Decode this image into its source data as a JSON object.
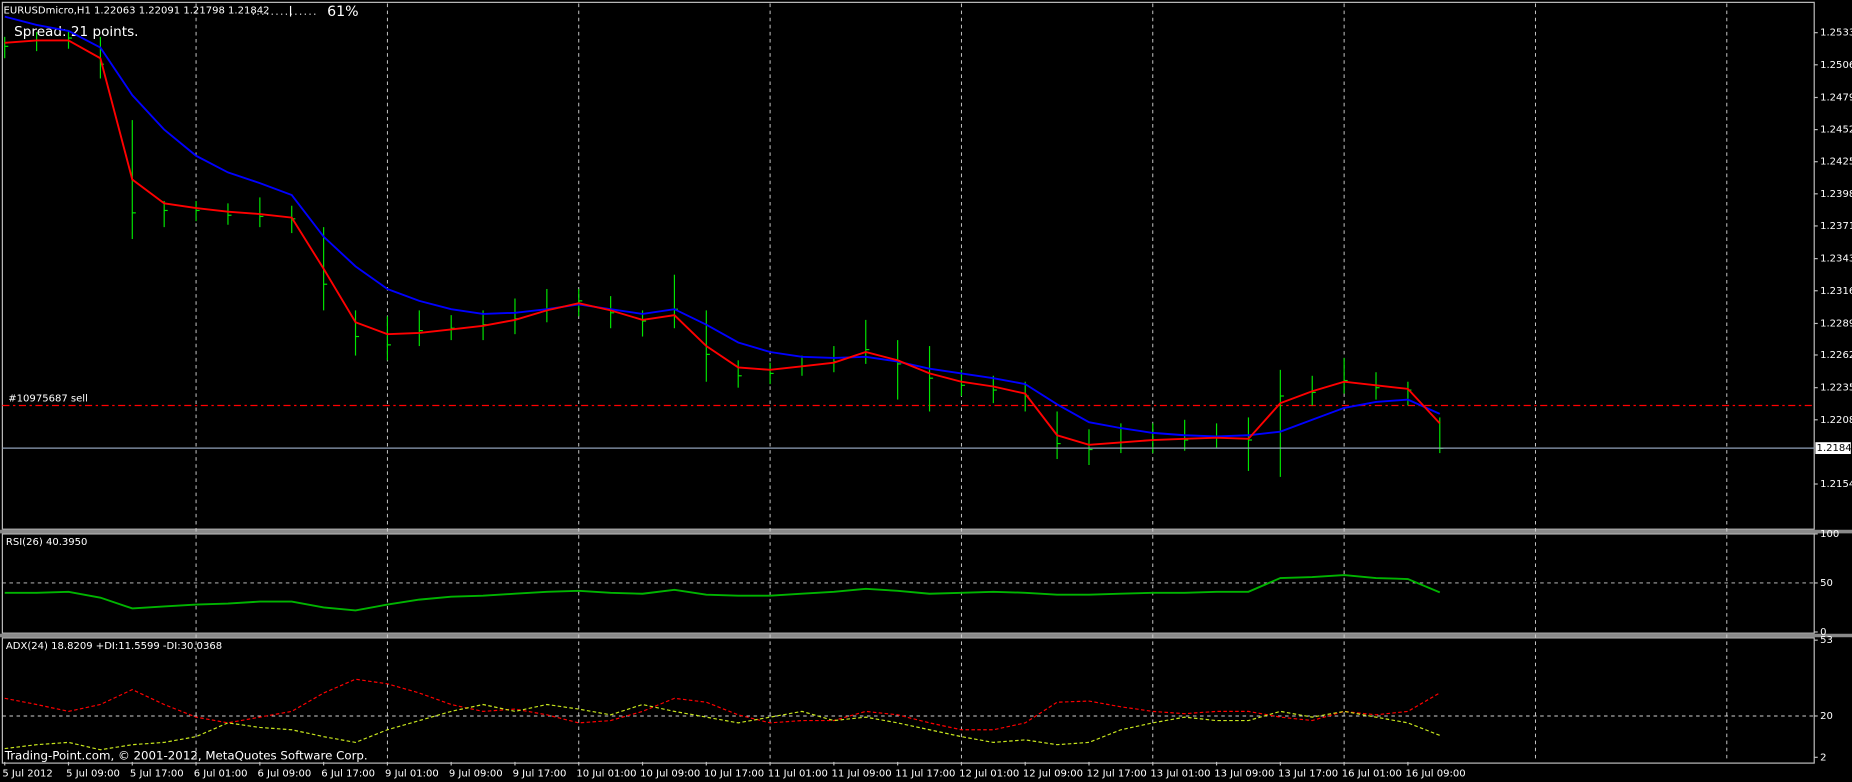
{
  "chart_data": [
    {
      "type": "hlc",
      "title": "EURUSDmicro,H1 1.22063 1.22091 1.21798 1.21842",
      "indicator": "61%",
      "spread": "Spread: 21 points.",
      "footer": "Trading-Point.com, © 2001-2012, MetaQuotes Software Corp.",
      "categories": [
        "5 Jul 2012",
        null,
        "5 Jul 09:00",
        null,
        "5 Jul 17:00",
        null,
        "6 Jul 01:00",
        null,
        "6 Jul 09:00",
        null,
        "6 Jul 17:00",
        null,
        "9 Jul 01:00",
        null,
        "9 Jul 09:00",
        null,
        "9 Jul 17:00",
        null,
        "10 Jul 01:00",
        null,
        "10 Jul 09:00",
        null,
        "10 Jul 17:00",
        null,
        "11 Jul 01:00",
        null,
        "11 Jul 09:00",
        null,
        "11 Jul 17:00",
        null,
        "12 Jul 01:00",
        null,
        "12 Jul 09:00",
        null,
        "12 Jul 17:00",
        null,
        "13 Jul 01:00",
        null,
        "13 Jul 09:00",
        null,
        "13 Jul 17:00",
        null,
        "16 Jul 01:00",
        null,
        "16 Jul 09:00",
        null
      ],
      "high": [
        1.253,
        1.2534,
        1.2535,
        1.253,
        1.246,
        1.2392,
        1.2392,
        1.239,
        1.2395,
        1.2388,
        1.237,
        1.23,
        1.2295,
        1.23,
        1.2296,
        1.23,
        1.231,
        1.2318,
        1.2318,
        1.2312,
        1.23,
        1.233,
        1.23,
        1.2258,
        1.2256,
        1.2262,
        1.227,
        1.2292,
        1.2275,
        1.227,
        1.225,
        1.2245,
        1.224,
        1.2215,
        1.22,
        1.2205,
        1.2205,
        1.2208,
        1.2205,
        1.221,
        1.225,
        1.2245,
        1.226,
        1.2248,
        1.224,
        1.221
      ],
      "low": [
        1.2512,
        1.2518,
        1.252,
        1.2495,
        1.236,
        1.237,
        1.2375,
        1.2372,
        1.237,
        1.2365,
        1.23,
        1.2262,
        1.2258,
        1.227,
        1.2275,
        1.2275,
        1.228,
        1.229,
        1.2295,
        1.2285,
        1.2278,
        1.2285,
        1.224,
        1.2235,
        1.2238,
        1.2245,
        1.2248,
        1.2255,
        1.2225,
        1.2215,
        1.2228,
        1.2222,
        1.2215,
        1.2175,
        1.217,
        1.218,
        1.218,
        1.2182,
        1.2184,
        1.2165,
        1.216,
        1.222,
        1.223,
        1.2225,
        1.222,
        1.218
      ],
      "close": [
        1.2522,
        1.2527,
        1.2529,
        1.2507,
        1.2382,
        1.2384,
        1.2384,
        1.238,
        1.2379,
        1.2377,
        1.2322,
        1.2278,
        1.2271,
        1.2283,
        1.2285,
        1.2288,
        1.2293,
        1.2301,
        1.2308,
        1.2298,
        1.2291,
        1.2301,
        1.2263,
        1.2245,
        1.2247,
        1.2253,
        1.2257,
        1.2267,
        1.2255,
        1.2243,
        1.2237,
        1.2233,
        1.2228,
        1.2188,
        1.2183,
        1.2189,
        1.2191,
        1.2191,
        1.2193,
        1.2191,
        1.2228,
        1.2231,
        1.2241,
        1.2235,
        1.2233,
        1.2184
      ],
      "color": "#00e600",
      "ma_lines": [
        {
          "color": "#0000ff",
          "values": [
            1.2547,
            1.254,
            1.2535,
            1.2521,
            1.2481,
            1.2452,
            1.243,
            1.2416,
            1.2407,
            1.2397,
            1.2362,
            1.2337,
            1.2318,
            1.2308,
            1.2301,
            1.2297,
            1.2298,
            1.2301,
            1.2305,
            1.2301,
            1.2297,
            1.2301,
            1.2288,
            1.2273,
            1.2265,
            1.2261,
            1.226,
            1.2261,
            1.2257,
            1.2251,
            1.2247,
            1.2243,
            1.2238,
            1.2221,
            1.2206,
            1.2201,
            1.2197,
            1.2195,
            1.2194,
            1.2195,
            1.2198,
            1.2208,
            1.2218,
            1.2223,
            1.2225,
            1.2213
          ]
        },
        {
          "color": "#ff0000",
          "values": [
            1.2525,
            1.2527,
            1.2527,
            1.2512,
            1.241,
            1.239,
            1.2386,
            1.2383,
            1.2381,
            1.2378,
            1.2335,
            1.229,
            1.228,
            1.2281,
            1.2284,
            1.2287,
            1.2292,
            1.23,
            1.2306,
            1.23,
            1.2292,
            1.2296,
            1.227,
            1.2252,
            1.225,
            1.2253,
            1.2256,
            1.2265,
            1.2258,
            1.2247,
            1.224,
            1.2236,
            1.223,
            1.2195,
            1.2187,
            1.2189,
            1.2191,
            1.2192,
            1.2193,
            1.2192,
            1.2222,
            1.2232,
            1.224,
            1.2237,
            1.2234,
            1.2205
          ]
        }
      ],
      "order_line": {
        "label": "#10975687 sell",
        "value": 1.222,
        "color": "#ff0000"
      },
      "current_price": 1.21842,
      "ylim": [
        1.2116,
        1.2558
      ],
      "yticks": [
        1.25335,
        1.25065,
        {
          "value": 1.2479,
          "label": "1.24790"
        },
        {
          "value": 1.2452,
          "label": "1.24520"
        },
        {
          "value": 1.2425,
          "label": "1.24250"
        },
        {
          "value": 1.2398,
          "label": "1.23980"
        },
        {
          "value": 1.2371,
          "label": "1.23710"
        },
        1.23435,
        1.23165,
        {
          "value": 1.2289,
          "label": "1.22890"
        },
        1.22625,
        {
          "value": 1.2235,
          "label": "1.22350"
        },
        {
          "value": 1.2208,
          "label": "1.22080"
        },
        {
          "value": 1.2154,
          "label": "1.21540"
        }
      ]
    },
    {
      "type": "line",
      "title": "RSI(26) 40.3950",
      "color": "#00b400",
      "values": [
        40,
        40,
        41,
        35,
        24,
        26,
        28,
        29,
        31,
        31,
        25,
        22,
        28,
        33,
        36,
        37,
        39,
        41,
        42,
        40,
        39,
        43,
        38,
        37,
        37,
        39,
        41,
        44,
        42,
        39,
        40,
        41,
        40,
        38,
        38,
        39,
        40,
        40,
        41,
        41,
        55,
        56,
        58,
        55,
        54,
        40.395
      ],
      "ylim": [
        0,
        100
      ],
      "yticks": [
        0,
        50,
        100
      ]
    },
    {
      "type": "line",
      "title": "ADX(24) 18.8209 +DI:11.5599 -DI:30.0368",
      "dashed": true,
      "series": [
        {
          "color": "#ff0000",
          "values": [
            27.7,
            25,
            22,
            25,
            31.5,
            25,
            19.5,
            17,
            19.5,
            22,
            30,
            36,
            34,
            30,
            25,
            22,
            23,
            20.5,
            17,
            18,
            22,
            27.7,
            26,
            20.5,
            17,
            18,
            18,
            22,
            20.5,
            17,
            14,
            14,
            17,
            26,
            26.5,
            24,
            22,
            21,
            22,
            22,
            19.5,
            18,
            22,
            20.5,
            22,
            30.04
          ]
        },
        {
          "color": "#c8e61d",
          "values": [
            5.8,
            7.5,
            8.5,
            5.3,
            7.5,
            8.5,
            11,
            17,
            15,
            14,
            11,
            8.5,
            14,
            18,
            22,
            25,
            22,
            25,
            23,
            20.5,
            25,
            22,
            19.5,
            17,
            19.5,
            22,
            18,
            19.5,
            17,
            14,
            11,
            8.5,
            9.6,
            7.5,
            8.5,
            14,
            17,
            19.5,
            18,
            18,
            22,
            19.5,
            22,
            19.5,
            17,
            11.56
          ]
        }
      ],
      "ylim": [
        0,
        54
      ],
      "yticks": [
        2,
        20,
        53
      ]
    }
  ]
}
